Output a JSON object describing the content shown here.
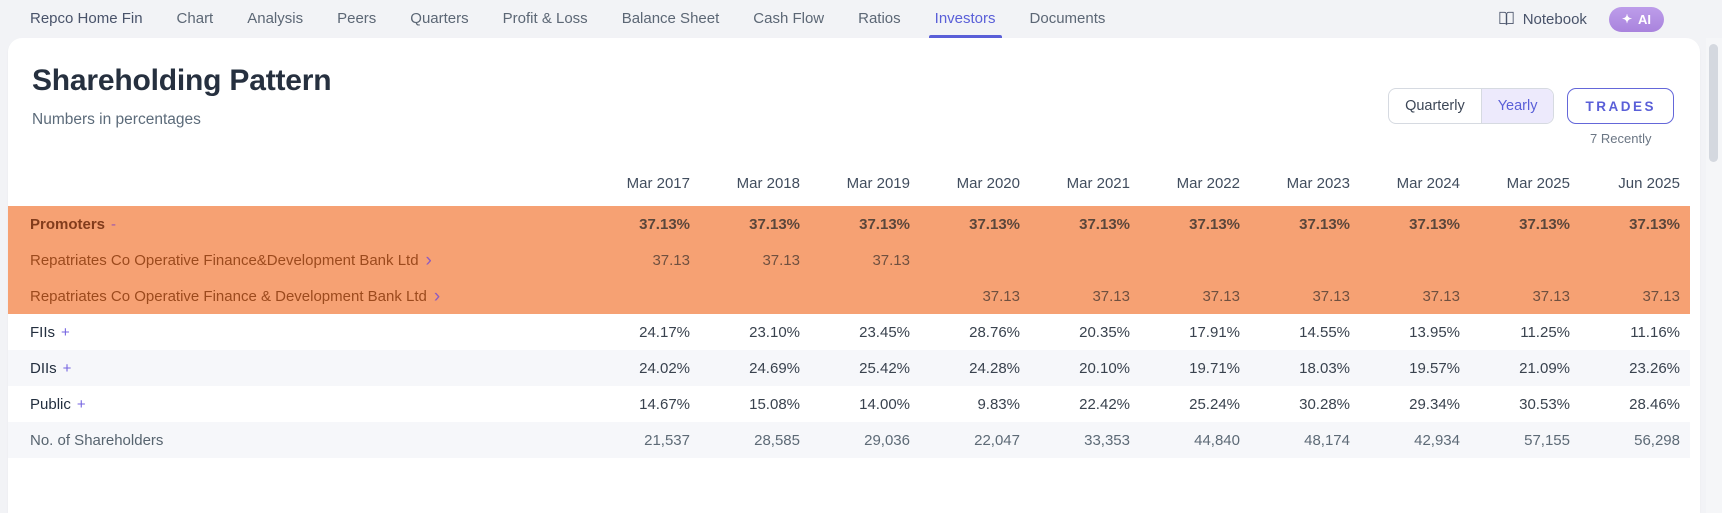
{
  "nav": {
    "company": "Repco Home Fin",
    "items": [
      "Chart",
      "Analysis",
      "Peers",
      "Quarters",
      "Profit & Loss",
      "Balance Sheet",
      "Cash Flow",
      "Ratios",
      "Investors",
      "Documents"
    ],
    "active": "Investors",
    "notebook": "Notebook",
    "ai": "AI",
    "ai_icon": "✦"
  },
  "header": {
    "title": "Shareholding Pattern",
    "subtitle": "Numbers in percentages"
  },
  "controls": {
    "quarterly": "Quarterly",
    "yearly": "Yearly",
    "selected": "Yearly",
    "trades": "TRADES",
    "recent": "7 Recently"
  },
  "table": {
    "columns": [
      "Mar 2017",
      "Mar 2018",
      "Mar 2019",
      "Mar 2020",
      "Mar 2021",
      "Mar 2022",
      "Mar 2023",
      "Mar 2024",
      "Mar 2025",
      "Jun 2025"
    ],
    "rows": [
      {
        "type": "promoter-total",
        "label": "Promoters",
        "toggle": "-",
        "highlight": true,
        "values": [
          "37.13%",
          "37.13%",
          "37.13%",
          "37.13%",
          "37.13%",
          "37.13%",
          "37.13%",
          "37.13%",
          "37.13%",
          "37.13%"
        ]
      },
      {
        "type": "promoter-entity",
        "label": "Repatriates Co Operative Finance&Development Bank Ltd",
        "chevron": "›",
        "highlight": true,
        "values": [
          "37.13",
          "37.13",
          "37.13",
          "",
          "",
          "",
          "",
          "",
          "",
          ""
        ]
      },
      {
        "type": "promoter-entity",
        "label": "Repatriates Co Operative Finance & Development Bank Ltd",
        "chevron": "›",
        "highlight": true,
        "values": [
          "",
          "",
          "",
          "37.13",
          "37.13",
          "37.13",
          "37.13",
          "37.13",
          "37.13",
          "37.13"
        ]
      },
      {
        "type": "group",
        "label": "FIIs",
        "toggle": "+",
        "striped": false,
        "values": [
          "24.17%",
          "23.10%",
          "23.45%",
          "28.76%",
          "20.35%",
          "17.91%",
          "14.55%",
          "13.95%",
          "11.25%",
          "11.16%"
        ]
      },
      {
        "type": "group",
        "label": "DIIs",
        "toggle": "+",
        "striped": true,
        "values": [
          "24.02%",
          "24.69%",
          "25.42%",
          "24.28%",
          "20.10%",
          "19.71%",
          "18.03%",
          "19.57%",
          "21.09%",
          "23.26%"
        ]
      },
      {
        "type": "group",
        "label": "Public",
        "toggle": "+",
        "striped": false,
        "values": [
          "14.67%",
          "15.08%",
          "14.00%",
          "9.83%",
          "22.42%",
          "25.24%",
          "30.28%",
          "29.34%",
          "30.53%",
          "28.46%"
        ]
      },
      {
        "type": "muted",
        "label": "No. of Shareholders",
        "striped": true,
        "values": [
          "21,537",
          "28,585",
          "29,036",
          "22,047",
          "33,353",
          "44,840",
          "48,174",
          "42,934",
          "57,155",
          "56,298"
        ]
      }
    ]
  },
  "colors": {
    "accent_purple": "#5a5fd8",
    "highlight_orange": "#f6a173",
    "ai_pill_purple": "#b192e2",
    "nav_background": "#f2f3f6",
    "stripe": "#f6f7fa"
  }
}
